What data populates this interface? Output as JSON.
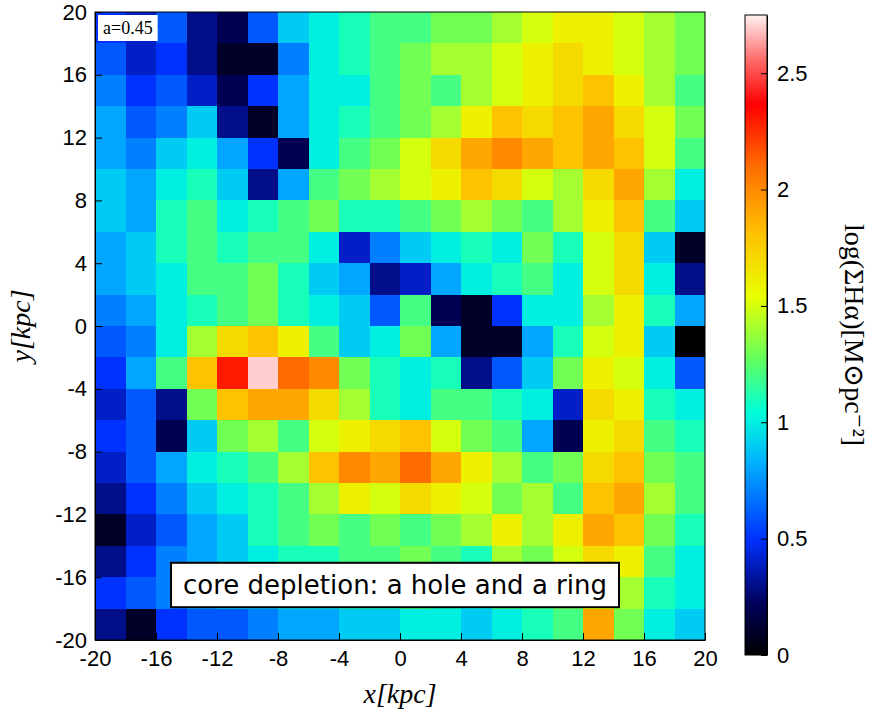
{
  "chart_data": {
    "type": "heatmap",
    "x_label": "x[kpc]",
    "y_label": "y[kpc]",
    "xlim": [
      -20,
      20
    ],
    "ylim": [
      -20,
      20
    ],
    "xticks": [
      -20,
      -16,
      -12,
      -8,
      -4,
      0,
      4,
      8,
      12,
      16,
      20
    ],
    "yticks": [
      -20,
      -16,
      -12,
      -8,
      -4,
      0,
      4,
      8,
      12,
      16,
      20
    ],
    "x_bins": [
      -20,
      -18,
      -16,
      -14,
      -12,
      -10,
      -8,
      -6,
      -4,
      -2,
      0,
      2,
      4,
      6,
      8,
      10,
      12,
      14,
      16,
      18,
      20
    ],
    "y_bins": [
      20,
      18,
      16,
      14,
      12,
      10,
      8,
      6,
      4,
      2,
      0,
      -2,
      -4,
      -6,
      -8,
      -10,
      -12,
      -14,
      -16,
      -18,
      -20
    ],
    "cells": [
      [
        0.5,
        0.4,
        0.6,
        0.3,
        0.2,
        0.6,
        0.9,
        1.0,
        1.1,
        1.2,
        1.2,
        1.3,
        1.3,
        1.4,
        1.5,
        1.6,
        1.6,
        1.5,
        1.4,
        1.3
      ],
      [
        0.6,
        0.4,
        0.5,
        0.3,
        0.1,
        0.1,
        0.7,
        1.0,
        1.1,
        1.2,
        1.3,
        1.4,
        1.4,
        1.5,
        1.6,
        1.7,
        1.6,
        1.5,
        1.4,
        1.3
      ],
      [
        0.7,
        0.5,
        0.6,
        0.4,
        0.2,
        0.5,
        0.8,
        1.0,
        1.0,
        1.2,
        1.3,
        1.2,
        1.4,
        1.5,
        1.6,
        1.7,
        1.8,
        1.6,
        1.4,
        1.2
      ],
      [
        0.8,
        0.6,
        0.7,
        0.9,
        0.3,
        0.1,
        0.8,
        1.0,
        1.1,
        1.2,
        1.3,
        1.4,
        1.6,
        1.8,
        1.7,
        1.8,
        1.9,
        1.7,
        1.5,
        1.3
      ],
      [
        0.8,
        0.7,
        0.9,
        1.0,
        0.8,
        0.5,
        0.2,
        1.0,
        1.2,
        1.3,
        1.5,
        1.7,
        1.9,
        2.0,
        1.9,
        1.8,
        1.9,
        1.8,
        1.5,
        1.2
      ],
      [
        0.9,
        0.8,
        1.0,
        1.1,
        0.9,
        0.3,
        0.8,
        1.2,
        1.3,
        1.4,
        1.5,
        1.6,
        1.8,
        1.7,
        1.5,
        1.4,
        1.7,
        1.9,
        1.4,
        1.0
      ],
      [
        0.9,
        0.8,
        1.1,
        1.2,
        1.0,
        1.1,
        1.2,
        1.3,
        1.1,
        1.1,
        1.2,
        1.3,
        1.4,
        1.3,
        1.2,
        1.4,
        1.6,
        1.8,
        1.2,
        0.9
      ],
      [
        0.8,
        0.9,
        1.1,
        1.2,
        1.1,
        1.2,
        1.2,
        1.0,
        0.4,
        0.7,
        0.9,
        1.0,
        1.1,
        1.0,
        1.3,
        1.1,
        1.5,
        1.7,
        0.9,
        0.1
      ],
      [
        0.8,
        0.9,
        1.0,
        1.2,
        1.2,
        1.3,
        1.1,
        0.9,
        0.8,
        0.3,
        0.4,
        0.8,
        1.0,
        1.1,
        1.2,
        1.0,
        1.5,
        1.7,
        1.0,
        0.3
      ],
      [
        0.7,
        0.8,
        1.0,
        1.1,
        1.2,
        1.3,
        1.1,
        1.0,
        0.9,
        0.6,
        1.2,
        0.2,
        0.1,
        0.5,
        1.0,
        1.0,
        1.4,
        1.6,
        1.1,
        0.8
      ],
      [
        0.6,
        0.7,
        1.0,
        1.4,
        1.7,
        1.8,
        1.6,
        1.2,
        0.9,
        1.0,
        1.3,
        0.8,
        0.1,
        0.1,
        0.8,
        1.1,
        1.5,
        1.6,
        0.9,
        0.0
      ],
      [
        0.5,
        0.8,
        1.2,
        1.8,
        2.3,
        2.7,
        2.1,
        2.0,
        1.3,
        1.1,
        1.0,
        1.1,
        0.3,
        0.6,
        0.9,
        1.3,
        1.6,
        1.5,
        1.0,
        0.6
      ],
      [
        0.4,
        0.6,
        0.3,
        1.3,
        1.8,
        1.9,
        1.9,
        1.7,
        1.4,
        1.1,
        1.0,
        1.2,
        1.2,
        1.1,
        1.0,
        0.4,
        1.7,
        1.6,
        1.1,
        1.0
      ],
      [
        0.5,
        0.6,
        0.2,
        0.9,
        1.3,
        1.4,
        1.2,
        1.5,
        1.6,
        1.7,
        1.8,
        1.5,
        1.3,
        1.2,
        0.8,
        0.2,
        1.6,
        1.7,
        1.2,
        1.1
      ],
      [
        0.4,
        0.6,
        0.8,
        1.0,
        1.1,
        1.2,
        1.4,
        1.8,
        2.0,
        1.9,
        2.1,
        1.9,
        1.6,
        1.4,
        1.2,
        1.3,
        1.7,
        1.8,
        1.3,
        1.2
      ],
      [
        0.3,
        0.5,
        0.7,
        0.9,
        1.0,
        1.1,
        1.2,
        1.4,
        1.6,
        1.5,
        1.7,
        1.6,
        1.5,
        1.3,
        1.4,
        1.2,
        1.8,
        1.9,
        1.4,
        1.2
      ],
      [
        0.1,
        0.4,
        0.6,
        0.8,
        0.9,
        1.1,
        1.2,
        1.3,
        1.2,
        1.3,
        1.2,
        1.3,
        1.4,
        1.6,
        1.4,
        1.6,
        1.9,
        1.8,
        1.3,
        1.1
      ],
      [
        0.3,
        0.5,
        0.7,
        0.8,
        0.9,
        1.0,
        1.1,
        1.1,
        1.2,
        1.2,
        1.3,
        1.2,
        1.1,
        1.4,
        1.3,
        1.5,
        1.7,
        1.6,
        1.2,
        1.0
      ],
      [
        0.5,
        0.6,
        0.7,
        0.8,
        0.9,
        0.9,
        1.0,
        1.0,
        1.1,
        1.1,
        1.2,
        1.1,
        1.0,
        1.2,
        1.2,
        1.3,
        1.5,
        1.4,
        1.1,
        1.0
      ],
      [
        0.3,
        0.1,
        0.5,
        0.6,
        0.6,
        0.7,
        0.8,
        0.8,
        0.9,
        0.9,
        1.0,
        1.0,
        0.9,
        1.0,
        1.1,
        1.2,
        1.9,
        1.3,
        1.0,
        0.9
      ]
    ],
    "colorbar": {
      "label": "log(ΣHα)[M⊙pc⁻²]",
      "range": [
        0,
        2.75
      ],
      "ticks": [
        0,
        0.5,
        1,
        1.5,
        2,
        2.5
      ]
    },
    "annotations": [
      "a=0.45",
      "core depletion: a hole and a ring"
    ]
  }
}
